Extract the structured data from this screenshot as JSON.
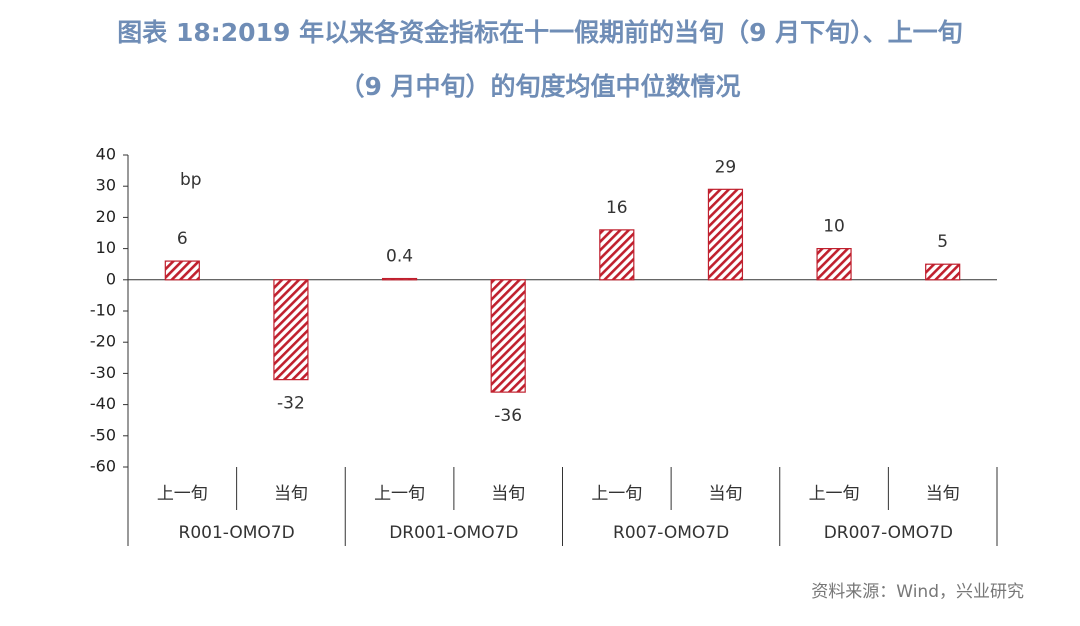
{
  "chart_data": {
    "type": "bar",
    "title_lines": [
      "图表 18:2019 年以来各资金指标在十一假期前的当旬（9 月下旬）、上一旬",
      "（9 月中旬）的旬度均值中位数情况"
    ],
    "unit_label": "bp",
    "categories": [
      "上一旬",
      "当旬",
      "上一旬",
      "当旬",
      "上一旬",
      "当旬",
      "上一旬",
      "当旬"
    ],
    "groups": [
      "R001-OMO7D",
      "DR001-OMO7D",
      "R007-OMO7D",
      "DR007-OMO7D"
    ],
    "values": [
      6,
      -32,
      0.4,
      -36,
      16,
      29,
      10,
      5
    ],
    "color": "#c0202e",
    "ylim": [
      -60,
      40
    ],
    "yticks": [
      -60,
      -50,
      -40,
      -30,
      -20,
      -10,
      0,
      10,
      20,
      30,
      40
    ],
    "grid": false,
    "source": "资料来源：Wind，兴业研究"
  }
}
